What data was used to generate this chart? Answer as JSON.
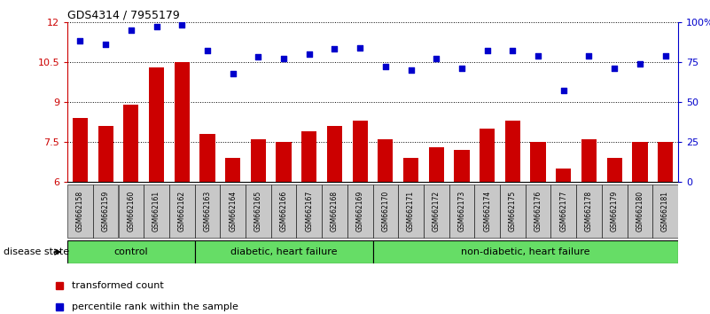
{
  "title": "GDS4314 / 7955179",
  "samples": [
    "GSM662158",
    "GSM662159",
    "GSM662160",
    "GSM662161",
    "GSM662162",
    "GSM662163",
    "GSM662164",
    "GSM662165",
    "GSM662166",
    "GSM662167",
    "GSM662168",
    "GSM662169",
    "GSM662170",
    "GSM662171",
    "GSM662172",
    "GSM662173",
    "GSM662174",
    "GSM662175",
    "GSM662176",
    "GSM662177",
    "GSM662178",
    "GSM662179",
    "GSM662180",
    "GSM662181"
  ],
  "bar_values": [
    8.4,
    8.1,
    8.9,
    10.3,
    10.5,
    7.8,
    6.9,
    7.6,
    7.5,
    7.9,
    8.1,
    8.3,
    7.6,
    6.9,
    7.3,
    7.2,
    8.0,
    8.3,
    7.5,
    6.5,
    7.6,
    6.9,
    7.5,
    7.5
  ],
  "dot_values": [
    88,
    86,
    95,
    97,
    98,
    82,
    68,
    78,
    77,
    80,
    83,
    84,
    72,
    70,
    77,
    71,
    82,
    82,
    79,
    57,
    79,
    71,
    74,
    79
  ],
  "group_labels": [
    "control",
    "diabetic, heart failure",
    "non-diabetic, heart failure"
  ],
  "group_starts": [
    0,
    5,
    12
  ],
  "group_ends": [
    4,
    11,
    23
  ],
  "ylim_left": [
    6,
    12
  ],
  "ylim_right": [
    0,
    100
  ],
  "yticks_left": [
    6,
    7.5,
    9,
    10.5,
    12
  ],
  "ytick_labels_left": [
    "6",
    "7.5",
    "9",
    "10.5",
    "12"
  ],
  "yticks_right": [
    0,
    25,
    50,
    75,
    100
  ],
  "ytick_labels_right": [
    "0",
    "25",
    "50",
    "75",
    "100%"
  ],
  "bar_color": "#cc0000",
  "dot_color": "#0000cc",
  "group_color": "#66dd66",
  "xtick_bg_color": "#c8c8c8",
  "legend_bar_label": "transformed count",
  "legend_dot_label": "percentile rank within the sample",
  "disease_state_label": "disease state"
}
